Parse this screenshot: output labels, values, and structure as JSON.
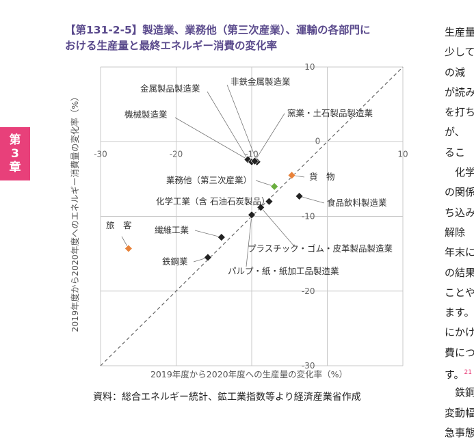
{
  "chapter_tab": [
    "第",
    "3",
    "章"
  ],
  "figure": {
    "title_lines": [
      "【第131-2-5】製造業、業務他（第三次産業）、運輸の各部門に",
      "おける生産量と最終エネルギー消費の変化率"
    ],
    "source": "資料：総合エネルギー統計、鉱工業指数等より経済産業省作成"
  },
  "body_text": {
    "lines": [
      "生産量",
      "少して",
      "の減",
      "が読み",
      "を打ち",
      "が、",
      "るこ",
      "化学",
      "の関係",
      "ち込み",
      "解除",
      "年末に",
      "の結果",
      "ことや",
      "ます。",
      "にかけ",
      "費につ",
      "す。",
      "鉄鋼",
      "変動幅",
      "急事態"
    ],
    "ref_mark": "21"
  },
  "colors": {
    "title": "#5a4a8c",
    "chapter_tab": "#e8407a",
    "manufacturing": "#222222",
    "transport": "#e8823a",
    "services": "#6aae3f",
    "grid": "#c8c8c8",
    "diagonal": "#666666"
  },
  "chart_data": {
    "type": "scatter",
    "xlabel": "2019年度から2020年度への生産量の変化率（%）",
    "ylabel": "2019年度から2020年度へのエネルギー消費量の変化率（%）",
    "xlim": [
      -30,
      10
    ],
    "ylim": [
      -30,
      10
    ],
    "xticks": [
      -30,
      -20,
      -10,
      0,
      10
    ],
    "yticks": [
      10,
      0,
      -10,
      -20,
      -30
    ],
    "grid": true,
    "diagonal_reference": "y = x (dashed)",
    "points": [
      {
        "name": "金属製品製造業",
        "x": -10.5,
        "y": -2.4,
        "group": "manufacturing"
      },
      {
        "name": "非鉄金属製造業",
        "x": -9.3,
        "y": -2.7,
        "group": "manufacturing"
      },
      {
        "name": "機械製造業",
        "x": -10.0,
        "y": -2.7,
        "group": "manufacturing"
      },
      {
        "name": "窯業・土石製品製造業",
        "x": -9.6,
        "y": -2.6,
        "group": "manufacturing"
      },
      {
        "name": "業務他（第三次産業）",
        "x": -7.0,
        "y": -6.0,
        "group": "services"
      },
      {
        "name": "貨　物",
        "x": -4.7,
        "y": -4.5,
        "group": "transport"
      },
      {
        "name": "食品飲料製造業",
        "x": -3.7,
        "y": -7.3,
        "group": "manufacturing"
      },
      {
        "name": "化学工業（含 石油石炭製品）",
        "x": -7.7,
        "y": -8.0,
        "group": "manufacturing"
      },
      {
        "name": "プラスチック・ゴム・皮革製品製造業",
        "x": -8.8,
        "y": -8.8,
        "group": "manufacturing"
      },
      {
        "name": "パルプ・紙・紙加工品製造業",
        "x": -10.0,
        "y": -9.8,
        "group": "manufacturing"
      },
      {
        "name": "繊維工業",
        "x": -14.0,
        "y": -12.8,
        "group": "manufacturing"
      },
      {
        "name": "鉄鋼業",
        "x": -15.8,
        "y": -15.5,
        "group": "manufacturing"
      },
      {
        "name": "旅　客",
        "x": -26.3,
        "y": -14.3,
        "group": "transport"
      }
    ]
  }
}
